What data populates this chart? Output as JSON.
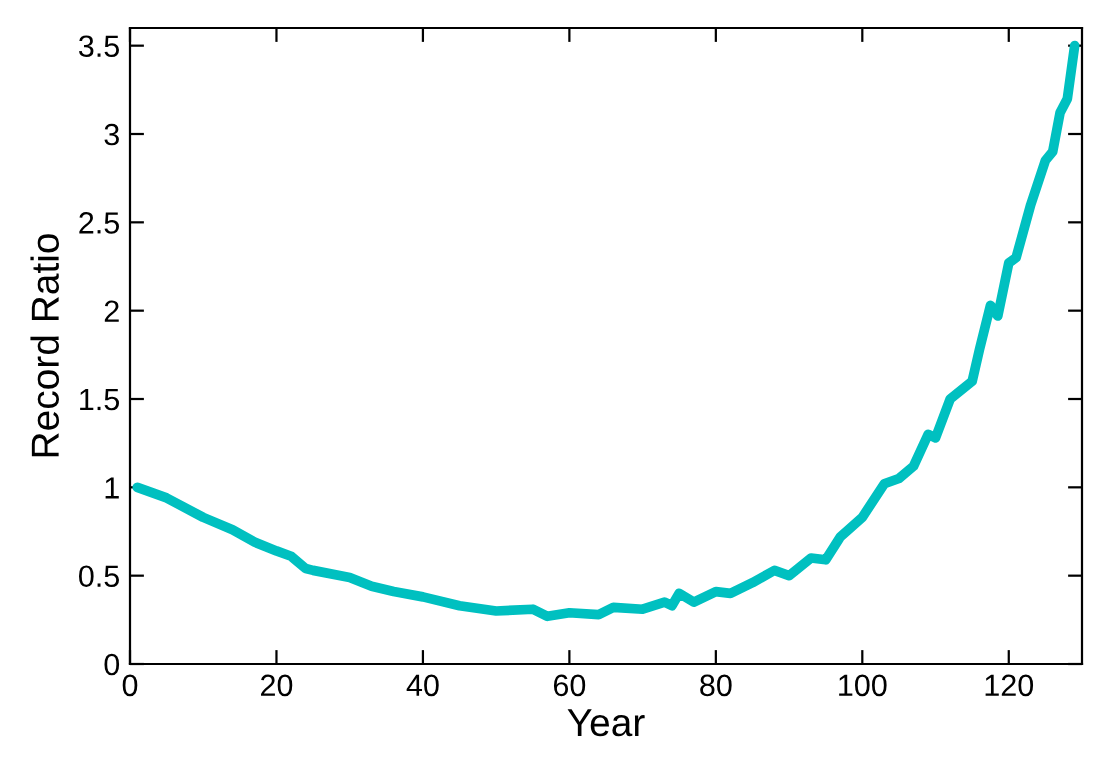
{
  "chart_data": {
    "type": "line",
    "xlabel": "Year",
    "ylabel": "Record Ratio",
    "xlim": [
      0,
      130
    ],
    "xticks": [
      0,
      20,
      40,
      60,
      80,
      100,
      120
    ],
    "ylim": [
      0,
      3.6
    ],
    "yticks": [
      0,
      0.5,
      1,
      1.5,
      2,
      2.5,
      3,
      3.5
    ],
    "grid": false,
    "legend": false,
    "marker": "none",
    "line_style": "solid",
    "series": [
      {
        "color": "#00c0c0",
        "x": [
          1,
          5,
          10,
          14,
          17,
          20,
          22,
          24,
          25,
          30,
          33,
          36,
          40,
          45,
          50,
          55,
          57,
          60,
          64,
          66,
          70,
          73,
          74,
          75,
          77,
          80,
          82,
          85,
          88,
          90,
          93,
          95,
          97,
          100,
          103,
          105,
          107,
          109,
          110,
          112,
          115,
          116,
          117.5,
          118.5,
          120,
          121,
          123,
          125,
          126,
          127,
          128,
          129
        ],
        "values": [
          1.0,
          0.94,
          0.83,
          0.76,
          0.69,
          0.64,
          0.61,
          0.54,
          0.53,
          0.49,
          0.44,
          0.41,
          0.38,
          0.33,
          0.3,
          0.31,
          0.27,
          0.29,
          0.28,
          0.32,
          0.31,
          0.35,
          0.33,
          0.4,
          0.35,
          0.41,
          0.4,
          0.46,
          0.53,
          0.5,
          0.6,
          0.59,
          0.72,
          0.83,
          1.02,
          1.05,
          1.12,
          1.3,
          1.28,
          1.5,
          1.6,
          1.78,
          2.03,
          1.97,
          2.27,
          2.3,
          2.6,
          2.85,
          2.9,
          3.12,
          3.2,
          3.5
        ]
      }
    ]
  }
}
